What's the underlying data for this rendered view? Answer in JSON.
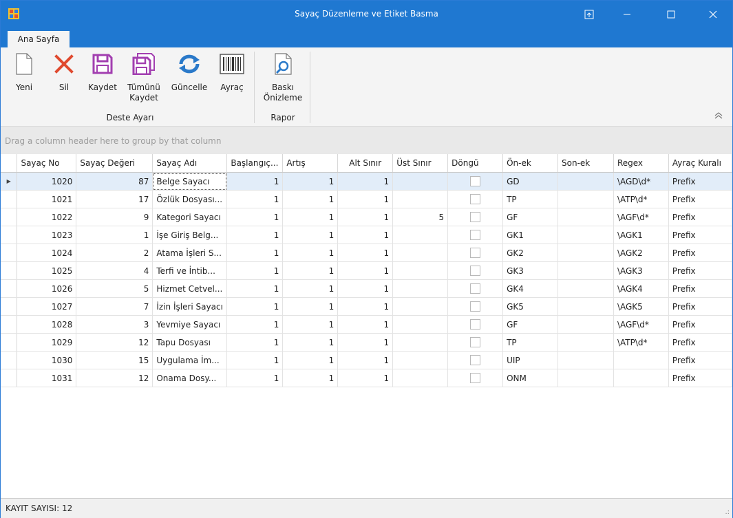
{
  "window": {
    "title": "Sayaç Düzenleme ve Etiket Basma"
  },
  "tabs": [
    {
      "label": "Ana Sayfa"
    }
  ],
  "ribbon": {
    "groups": [
      {
        "label": "Deste Ayarı"
      },
      {
        "label": "Rapor"
      }
    ],
    "buttons": {
      "yeni": "Yeni",
      "sil": "Sil",
      "kaydet": "Kaydet",
      "tumunu_kaydet_1": "Tümünü",
      "tumunu_kaydet_2": "Kaydet",
      "guncelle": "Güncelle",
      "ayrac": "Ayraç",
      "baski_1": "Baskı",
      "baski_2": "Önizleme"
    },
    "icons": {
      "yeni": "new-document-icon",
      "sil": "delete-x-icon",
      "kaydet": "save-disk-icon",
      "tumunu_kaydet": "save-all-icon",
      "guncelle": "refresh-icon",
      "ayrac": "barcode-icon",
      "baski": "print-preview-icon"
    },
    "colors": {
      "accent": "#1f78d1",
      "delete": "#e04a2f",
      "save": "#a23fb0",
      "refresh": "#2a79c9"
    }
  },
  "grid": {
    "group_panel_text": "Drag a column header here to group by that column",
    "columns": [
      "Sayaç No",
      "Sayaç Değeri",
      "Sayaç Adı",
      "Başlangıç...",
      "Artış",
      "Alt Sınır",
      "Üst Sınır",
      "Döngü",
      "Ön-ek",
      "Son-ek",
      "Regex",
      "Ayraç Kuralı"
    ],
    "rows": [
      {
        "no": "1020",
        "deger": "87",
        "ad": "Belge Sayacı",
        "bas": "1",
        "artis": "1",
        "alt": "1",
        "ust": "",
        "onek": "GD",
        "sonek": "",
        "regex": "\\AGD\\d*",
        "kural": "Prefix"
      },
      {
        "no": "1021",
        "deger": "17",
        "ad": "Özlük Dosyası...",
        "bas": "1",
        "artis": "1",
        "alt": "1",
        "ust": "",
        "onek": "TP",
        "sonek": "",
        "regex": "\\ATP\\d*",
        "kural": "Prefix"
      },
      {
        "no": "1022",
        "deger": "9",
        "ad": "Kategori Sayacı",
        "bas": "1",
        "artis": "1",
        "alt": "1",
        "ust": "5",
        "onek": "GF",
        "sonek": "",
        "regex": "\\AGF\\d*",
        "kural": "Prefix"
      },
      {
        "no": "1023",
        "deger": "1",
        "ad": "İşe Giriş Belg...",
        "bas": "1",
        "artis": "1",
        "alt": "1",
        "ust": "",
        "onek": "GK1",
        "sonek": "",
        "regex": "\\AGK1",
        "kural": "Prefix"
      },
      {
        "no": "1024",
        "deger": "2",
        "ad": "Atama İşleri S...",
        "bas": "1",
        "artis": "1",
        "alt": "1",
        "ust": "",
        "onek": "GK2",
        "sonek": "",
        "regex": "\\AGK2",
        "kural": "Prefix"
      },
      {
        "no": "1025",
        "deger": "4",
        "ad": "Terfi ve İntib...",
        "bas": "1",
        "artis": "1",
        "alt": "1",
        "ust": "",
        "onek": "GK3",
        "sonek": "",
        "regex": "\\AGK3",
        "kural": "Prefix"
      },
      {
        "no": "1026",
        "deger": "5",
        "ad": "Hizmet Cetvel...",
        "bas": "1",
        "artis": "1",
        "alt": "1",
        "ust": "",
        "onek": "GK4",
        "sonek": "",
        "regex": "\\AGK4",
        "kural": "Prefix"
      },
      {
        "no": "1027",
        "deger": "7",
        "ad": "İzin İşleri Sayacı",
        "bas": "1",
        "artis": "1",
        "alt": "1",
        "ust": "",
        "onek": "GK5",
        "sonek": "",
        "regex": "\\AGK5",
        "kural": "Prefix"
      },
      {
        "no": "1028",
        "deger": "3",
        "ad": "Yevmiye Sayacı",
        "bas": "1",
        "artis": "1",
        "alt": "1",
        "ust": "",
        "onek": "GF",
        "sonek": "",
        "regex": "\\AGF\\d*",
        "kural": "Prefix"
      },
      {
        "no": "1029",
        "deger": "12",
        "ad": "Tapu Dosyası",
        "bas": "1",
        "artis": "1",
        "alt": "1",
        "ust": "",
        "onek": "TP",
        "sonek": "",
        "regex": "\\ATP\\d*",
        "kural": "Prefix"
      },
      {
        "no": "1030",
        "deger": "15",
        "ad": "Uygulama İm...",
        "bas": "1",
        "artis": "1",
        "alt": "1",
        "ust": "",
        "onek": "UIP",
        "sonek": "",
        "regex": "",
        "kural": "Prefix"
      },
      {
        "no": "1031",
        "deger": "12",
        "ad": "Onama Dosy...",
        "bas": "1",
        "artis": "1",
        "alt": "1",
        "ust": "",
        "onek": "ONM",
        "sonek": "",
        "regex": "",
        "kural": "Prefix"
      }
    ]
  },
  "status": {
    "record_count": "KAYIT SAYISI: 12"
  }
}
